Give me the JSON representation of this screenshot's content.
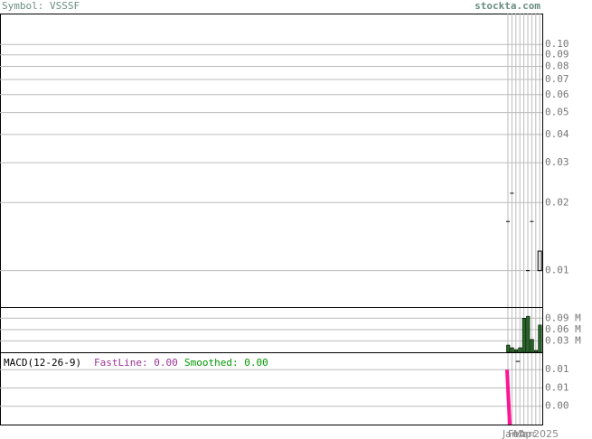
{
  "header": {
    "symbol": "Symbol: VSSSF",
    "site": "stockta.com"
  },
  "chart_data": [
    {
      "type": "ohlc",
      "ylim": [
        0.0069,
        0.137
      ],
      "log_scale": true,
      "grid": true,
      "yticks": [
        {
          "value": 0.1,
          "label": "0.10"
        },
        {
          "value": 0.09,
          "label": "0.09"
        },
        {
          "value": 0.08,
          "label": "0.08"
        },
        {
          "value": 0.07,
          "label": "0.07"
        },
        {
          "value": 0.06,
          "label": "0.06"
        },
        {
          "value": 0.05,
          "label": "0.05"
        },
        {
          "value": 0.04,
          "label": "0.04"
        },
        {
          "value": 0.03,
          "label": "0.03"
        },
        {
          "value": 0.02,
          "label": "0.02"
        },
        {
          "value": 0.01,
          "label": "0.01"
        }
      ],
      "categories": [
        null,
        null,
        null,
        null,
        null,
        null,
        null,
        null,
        null
      ],
      "open": [
        0.0165,
        0.022,
        null,
        null,
        null,
        0.01,
        0.0165,
        null,
        0.0122
      ],
      "close": [
        0.0165,
        0.022,
        null,
        null,
        null,
        0.01,
        0.0165,
        null,
        0.01
      ],
      "color": "#000000"
    },
    {
      "type": "bar",
      "ylim": [
        0,
        0.117
      ],
      "grid": true,
      "yticks": [
        {
          "value": 0.09,
          "label": "0.09 M"
        },
        {
          "value": 0.06,
          "label": "0.06 M"
        },
        {
          "value": 0.03,
          "label": "0.03 M"
        }
      ],
      "categories": [
        null,
        null,
        null,
        null,
        null,
        null,
        null,
        null,
        null
      ],
      "values": [
        0.019,
        0.012,
        0.007,
        0.012,
        0.09,
        0.095,
        0.034,
        0.005,
        0.072
      ],
      "color": "#1f6b1f"
    },
    {
      "type": "macd",
      "title": "MACD(12-26-9)",
      "fast_label": "FastLine: 0.00",
      "smoothed_label": "Smoothed: 0.00",
      "ylim": [
        0.002,
        0.0098
      ],
      "grid": true,
      "yticks": [
        {
          "value": 0.008,
          "label": "0.01"
        },
        {
          "value": 0.006,
          "label": "0.01"
        },
        {
          "value": 0.004,
          "label": "0.00"
        }
      ],
      "categories": [
        null,
        null,
        null,
        null,
        null,
        null,
        null,
        null,
        null
      ],
      "values": [
        0.008,
        null,
        null,
        null,
        null,
        null,
        null,
        null,
        null
      ],
      "fast": [
        null,
        null,
        0.0089,
        0.0089,
        null,
        null,
        null,
        null,
        null
      ],
      "color": "#ff1493",
      "fast_color": "#000000",
      "x_labels": [
        "Jan",
        "Feb",
        "Mar",
        "Apr",
        "2025"
      ]
    }
  ]
}
